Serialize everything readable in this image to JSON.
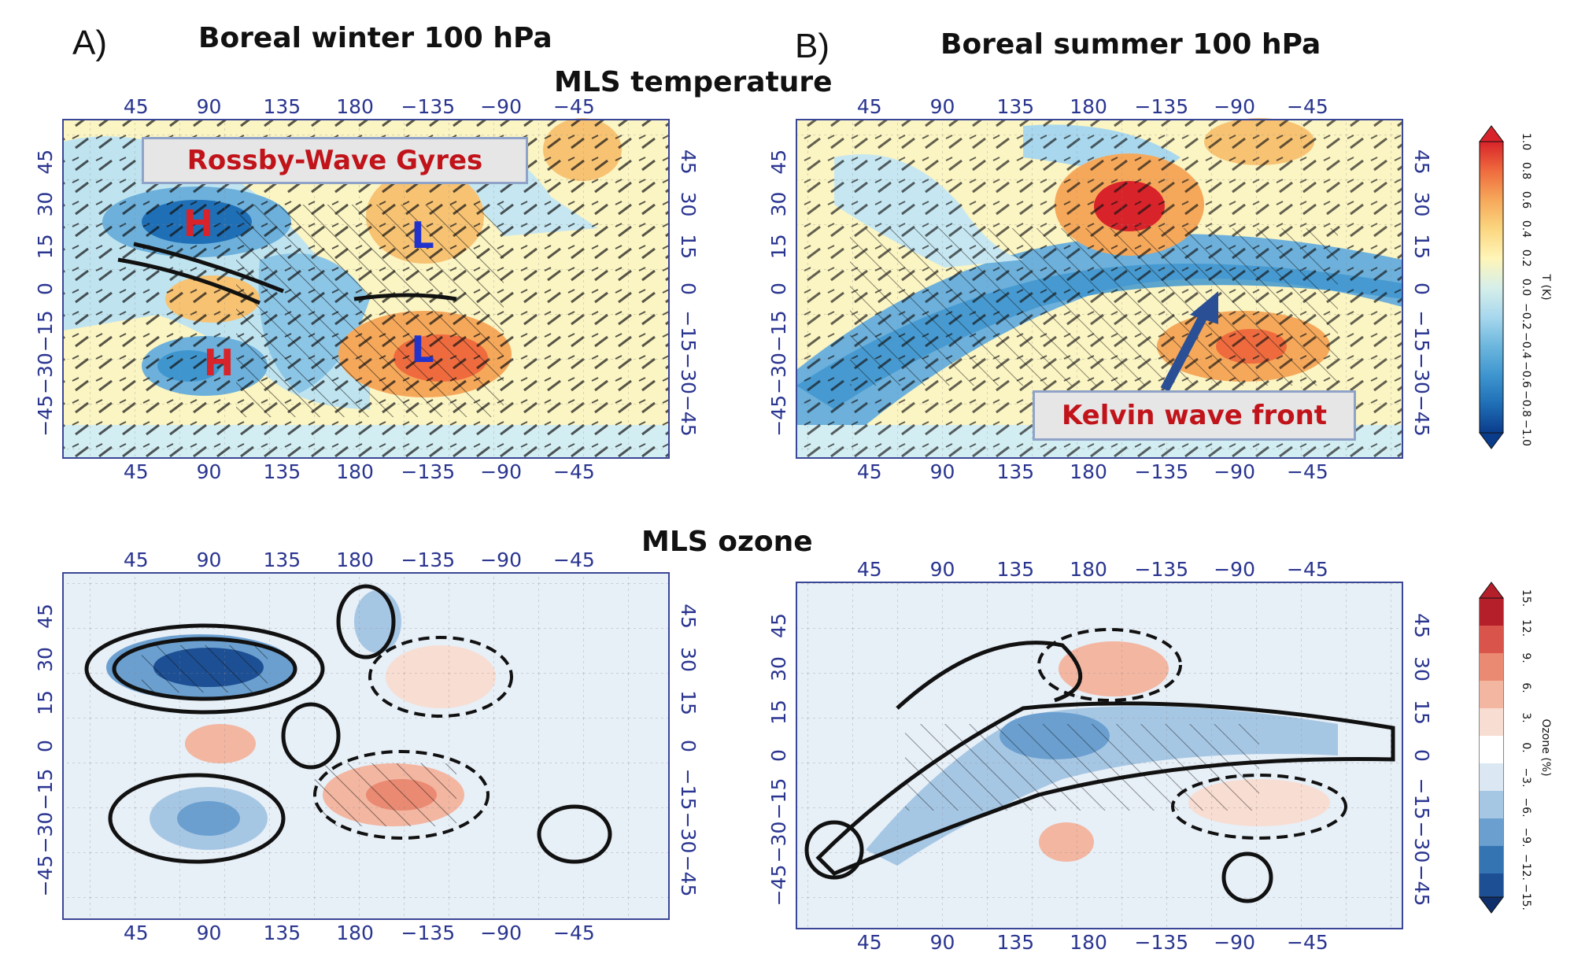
{
  "panels": {
    "a_label": "A)",
    "b_label": "B)",
    "a_title": "Boreal winter 100 hPa",
    "b_title": "Boreal summer 100 hPa"
  },
  "row_titles": {
    "temperature": "MLS temperature",
    "ozone": "MLS ozone"
  },
  "axes": {
    "lon_ticks": [
      "45",
      "90",
      "135",
      "180",
      "−135",
      "−90",
      "−45"
    ],
    "lat_ticks": [
      "45",
      "30",
      "15",
      "0",
      "−15",
      "−30",
      "−45"
    ]
  },
  "annotations": {
    "rossby": "Rossby-Wave Gyres",
    "kelvin": "Kelvin wave front",
    "markers": [
      "H",
      "H",
      "L",
      "L"
    ]
  },
  "colorbars": {
    "temperature": {
      "unit_label": "T (K)",
      "ticks": [
        "−1.0",
        "−0.8",
        "−0.6",
        "−0.4",
        "−0.2",
        "0.0",
        "0.2",
        "0.4",
        "0.6",
        "0.8",
        "1.0"
      ],
      "colors": [
        "#0b3c8c",
        "#1f6fb6",
        "#3f96cf",
        "#6db7de",
        "#a9d8ee",
        "#d6efe9",
        "#fff5b8",
        "#fbd680",
        "#f6a85a",
        "#ef6b3e",
        "#d8232a"
      ]
    },
    "ozone": {
      "unit_label": "Ozone (%)",
      "ticks": [
        "−15.",
        "−12.",
        "−9.",
        "−6.",
        "−3.",
        "0.",
        "3.",
        "6.",
        "9.",
        "12.",
        "15."
      ],
      "colors": [
        "#0f2f6b",
        "#1d4f94",
        "#3474b3",
        "#6a9fcf",
        "#a6c7e4",
        "#dbe8f3",
        "#f8ddd2",
        "#f3b6a1",
        "#ea8a72",
        "#d9544a",
        "#b51f2a"
      ]
    }
  }
}
